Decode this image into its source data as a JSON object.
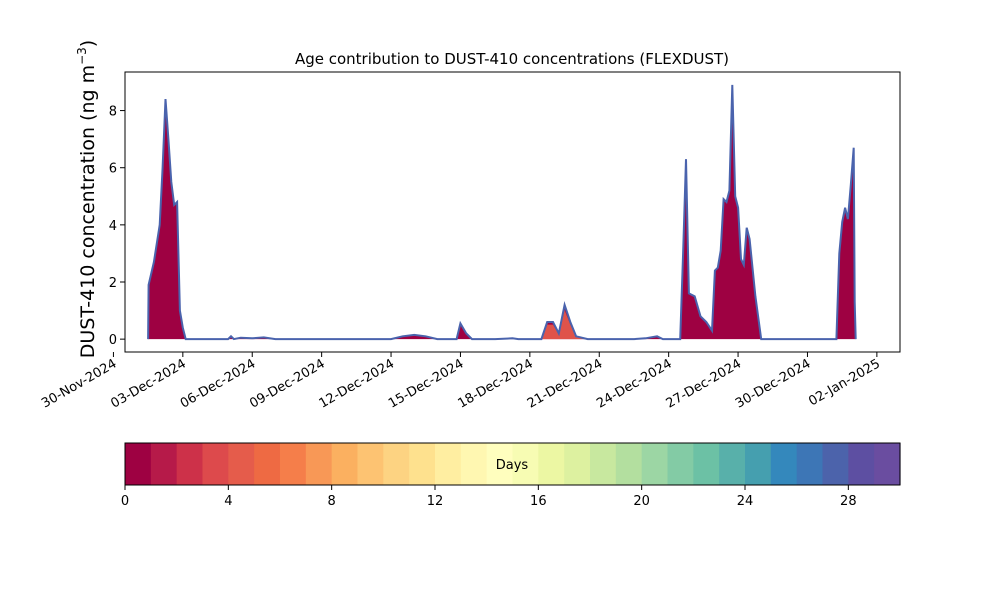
{
  "chart_data": {
    "type": "area",
    "title": "Age contribution to DUST-410 concentrations (FLEXDUST)",
    "xlabel": "",
    "ylabel": "DUST-410 concentration (ng m",
    "ylabel_unit_exp": "−3",
    "ylabel_close": ")",
    "x_tick_labels": [
      "30-Nov-2024",
      "03-Dec-2024",
      "06-Dec-2024",
      "09-Dec-2024",
      "12-Dec-2024",
      "15-Dec-2024",
      "18-Dec-2024",
      "21-Dec-2024",
      "24-Dec-2024",
      "27-Dec-2024",
      "30-Dec-2024",
      "02-Jan-2025"
    ],
    "y_ticks": [
      0,
      2,
      4,
      6,
      8
    ],
    "ylim": [
      -0.45,
      9.35
    ],
    "xlim": [
      "2024-11-30T12:00",
      "2025-01-03T00:00"
    ],
    "series": [
      {
        "stack": "total (all ages 0–30 days, dominated by 0–1 day)",
        "points": [
          [
            "2024-12-01T12:00",
            0
          ],
          [
            "2024-12-01T12:30",
            1.9
          ],
          [
            "2024-12-01T18:00",
            2.7
          ],
          [
            "2024-12-02T00:00",
            4.0
          ],
          [
            "2024-12-02T03:00",
            6.0
          ],
          [
            "2024-12-02T06:00",
            8.4
          ],
          [
            "2024-12-02T09:00",
            7.0
          ],
          [
            "2024-12-02T12:00",
            5.5
          ],
          [
            "2024-12-02T15:00",
            4.7
          ],
          [
            "2024-12-02T18:00",
            4.8
          ],
          [
            "2024-12-02T21:00",
            1.0
          ],
          [
            "2024-12-03T00:00",
            0.4
          ],
          [
            "2024-12-03T03:00",
            0.0
          ],
          [
            "2024-12-04T23:00",
            0.0
          ],
          [
            "2024-12-05T02:00",
            0.1
          ],
          [
            "2024-12-05T05:00",
            0.0
          ],
          [
            "2024-12-05T12:00",
            0.05
          ],
          [
            "2024-12-06T00:00",
            0.03
          ],
          [
            "2024-12-06T12:00",
            0.06
          ],
          [
            "2024-12-07T00:00",
            0.0
          ],
          [
            "2024-12-12T00:00",
            0.0
          ],
          [
            "2024-12-12T12:00",
            0.1
          ],
          [
            "2024-12-13T00:00",
            0.15
          ],
          [
            "2024-12-13T12:00",
            0.1
          ],
          [
            "2024-12-14T00:00",
            0.0
          ],
          [
            "2024-12-14T20:00",
            0.0
          ],
          [
            "2024-12-15T00:00",
            0.55
          ],
          [
            "2024-12-15T06:00",
            0.2
          ],
          [
            "2024-12-15T12:00",
            0.0
          ],
          [
            "2024-12-16T12:00",
            0.0
          ],
          [
            "2024-12-17T06:00",
            0.03
          ],
          [
            "2024-12-17T12:00",
            0.0
          ],
          [
            "2024-12-18T12:00",
            0.0
          ],
          [
            "2024-12-18T18:00",
            0.6
          ],
          [
            "2024-12-19T00:00",
            0.6
          ],
          [
            "2024-12-19T06:00",
            0.2
          ],
          [
            "2024-12-19T12:00",
            1.2
          ],
          [
            "2024-12-19T18:00",
            0.6
          ],
          [
            "2024-12-20T00:00",
            0.1
          ],
          [
            "2024-12-20T12:00",
            0.0
          ],
          [
            "2024-12-22T12:00",
            0.0
          ],
          [
            "2024-12-23T00:00",
            0.03
          ],
          [
            "2024-12-23T12:00",
            0.1
          ],
          [
            "2024-12-23T18:00",
            0.0
          ],
          [
            "2024-12-24T12:00",
            0.0
          ],
          [
            "2024-12-24T15:00",
            3.0
          ],
          [
            "2024-12-24T18:00",
            6.3
          ],
          [
            "2024-12-24T21:00",
            1.6
          ],
          [
            "2024-12-25T03:00",
            1.5
          ],
          [
            "2024-12-25T09:00",
            0.8
          ],
          [
            "2024-12-25T15:00",
            0.6
          ],
          [
            "2024-12-25T21:00",
            0.3
          ],
          [
            "2024-12-26T00:00",
            2.4
          ],
          [
            "2024-12-26T03:00",
            2.5
          ],
          [
            "2024-12-26T06:00",
            3.1
          ],
          [
            "2024-12-26T09:00",
            4.9
          ],
          [
            "2024-12-26T12:00",
            4.8
          ],
          [
            "2024-12-26T15:00",
            5.2
          ],
          [
            "2024-12-26T18:00",
            8.9
          ],
          [
            "2024-12-26T21:00",
            5.0
          ],
          [
            "2024-12-27T00:00",
            4.6
          ],
          [
            "2024-12-27T03:00",
            2.8
          ],
          [
            "2024-12-27T06:00",
            2.6
          ],
          [
            "2024-12-27T09:00",
            3.9
          ],
          [
            "2024-12-27T12:00",
            3.5
          ],
          [
            "2024-12-27T18:00",
            1.5
          ],
          [
            "2024-12-28T00:00",
            0.0
          ],
          [
            "2024-12-31T06:00",
            0.0
          ],
          [
            "2024-12-31T09:00",
            3.0
          ],
          [
            "2024-12-31T12:00",
            4.1
          ],
          [
            "2024-12-31T15:00",
            4.6
          ],
          [
            "2024-12-31T18:00",
            4.2
          ],
          [
            "2024-12-31T21:00",
            5.4
          ],
          [
            "2025-01-01T00:00",
            6.7
          ],
          [
            "2025-01-01T01:00",
            1.3
          ],
          [
            "2025-01-01T02:00",
            0.0
          ]
        ]
      }
    ],
    "colorbar": {
      "label": "Days",
      "ticks": [
        0,
        4,
        8,
        12,
        16,
        20,
        24,
        28
      ],
      "range": [
        0,
        30
      ],
      "n_bins": 30,
      "colormap": "Spectral",
      "colors": [
        "#9e0142",
        "#b61a49",
        "#cd3149",
        "#dd4a4c",
        "#e55c4b",
        "#ee6a43",
        "#f57e4a",
        "#f89856",
        "#fbb060",
        "#fdc372",
        "#fdd382",
        "#fee18e",
        "#ffeea1",
        "#fff7b1",
        "#fffebe",
        "#f7fcb3",
        "#ecf7a3",
        "#ddf1a0",
        "#c8e89f",
        "#b3df9f",
        "#9cd6a4",
        "#83cba5",
        "#6cc1a5",
        "#58b0aa",
        "#459faf",
        "#3488bc",
        "#3d76b6",
        "#4c63ab",
        "#5d4fa2",
        "#6a4da0"
      ]
    },
    "fill_colors": {
      "age_0_1_day": "#9e0142",
      "age_older_minor": "#e55c4b",
      "outline": "#4a63ad"
    }
  }
}
